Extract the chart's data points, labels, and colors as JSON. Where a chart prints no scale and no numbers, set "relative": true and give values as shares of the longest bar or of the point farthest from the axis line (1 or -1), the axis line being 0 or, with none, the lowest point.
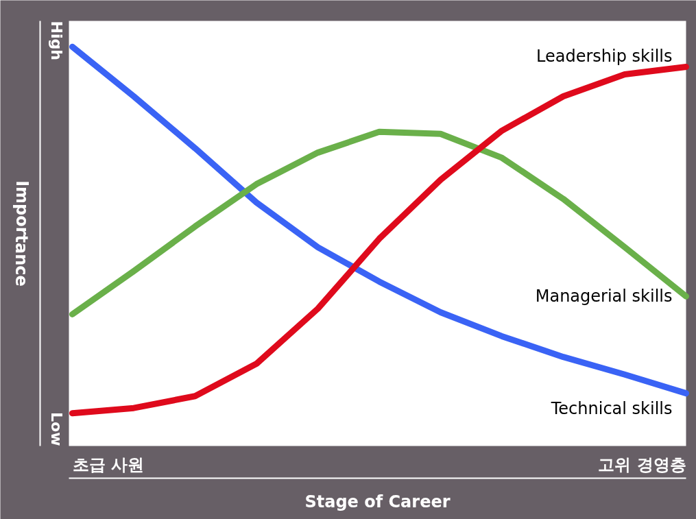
{
  "chart_data": {
    "type": "line",
    "relative": true,
    "xlabel": "Stage of Career",
    "ylabel": "Importance",
    "annotations": [
      "High",
      "Low",
      "초급 사원",
      "고위 경영층"
    ],
    "categories": [
      null,
      null,
      null,
      null,
      null,
      null,
      null,
      null,
      null,
      null,
      null
    ],
    "series": [
      {
        "name": "Technical skills",
        "color": "#3a63f5",
        "values": [
          1.0,
          0.876,
          0.746,
          0.61,
          0.498,
          0.412,
          0.335,
          0.275,
          0.223,
          0.179,
          0.132
        ]
      },
      {
        "name": "Managerial skills",
        "color": "#6ab04a",
        "values": [
          0.33,
          0.438,
          0.55,
          0.656,
          0.735,
          0.787,
          0.782,
          0.722,
          0.619,
          0.498,
          0.375
        ]
      },
      {
        "name": "Leadership skills",
        "color": "#df0a1c",
        "values": [
          0.082,
          0.095,
          0.125,
          0.206,
          0.344,
          0.519,
          0.667,
          0.79,
          0.876,
          0.931,
          0.95
        ]
      }
    ],
    "marker": "none",
    "line_style": "solid"
  }
}
